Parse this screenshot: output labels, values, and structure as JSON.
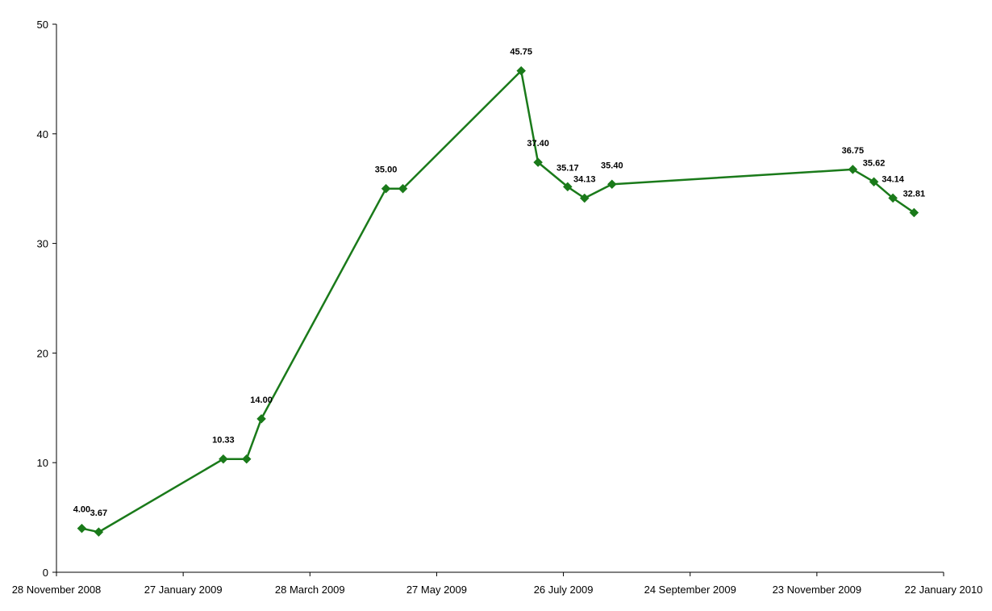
{
  "chart_data": {
    "type": "line",
    "title": "",
    "xlabel": "",
    "ylabel": "",
    "xlim": [
      "2008-11-28",
      "2010-01-22"
    ],
    "ylim": [
      0,
      50
    ],
    "y_ticks": [
      0,
      10,
      20,
      30,
      40,
      50
    ],
    "x_ticks": [
      {
        "date": "2008-11-28",
        "label": "28 November 2008"
      },
      {
        "date": "2009-01-27",
        "label": "27 January 2009"
      },
      {
        "date": "2009-03-28",
        "label": "28 March 2009"
      },
      {
        "date": "2009-05-27",
        "label": "27 May 2009"
      },
      {
        "date": "2009-07-26",
        "label": "26 July 2009"
      },
      {
        "date": "2009-09-24",
        "label": "24 September 2009"
      },
      {
        "date": "2009-11-23",
        "label": "23 November 2009"
      },
      {
        "date": "2010-01-22",
        "label": "22 January 2010"
      }
    ],
    "grid": false,
    "legend": "none",
    "series": [
      {
        "color": "#1a7a1a",
        "marker": "diamond",
        "points": [
          {
            "x": "2008-12-10",
            "y": 4.0,
            "label": "4.00"
          },
          {
            "x": "2008-12-18",
            "y": 3.67,
            "label": "3.67"
          },
          {
            "x": "2009-02-15",
            "y": 10.33,
            "label": "10.33"
          },
          {
            "x": "2009-02-26",
            "y": 10.33,
            "label": ""
          },
          {
            "x": "2009-03-05",
            "y": 14.0,
            "label": "14.00"
          },
          {
            "x": "2009-05-03",
            "y": 35.0,
            "label": "35.00"
          },
          {
            "x": "2009-05-11",
            "y": 35.0,
            "label": ""
          },
          {
            "x": "2009-07-06",
            "y": 45.75,
            "label": "45.75"
          },
          {
            "x": "2009-07-14",
            "y": 37.4,
            "label": "37.40"
          },
          {
            "x": "2009-07-28",
            "y": 35.17,
            "label": "35.17"
          },
          {
            "x": "2009-08-05",
            "y": 34.13,
            "label": "34.13"
          },
          {
            "x": "2009-08-18",
            "y": 35.4,
            "label": "35.40"
          },
          {
            "x": "2009-12-10",
            "y": 36.75,
            "label": "36.75"
          },
          {
            "x": "2009-12-20",
            "y": 35.62,
            "label": "35.62"
          },
          {
            "x": "2009-12-29",
            "y": 34.14,
            "label": "34.14"
          },
          {
            "x": "2010-01-08",
            "y": 32.81,
            "label": "32.81"
          }
        ]
      }
    ]
  }
}
